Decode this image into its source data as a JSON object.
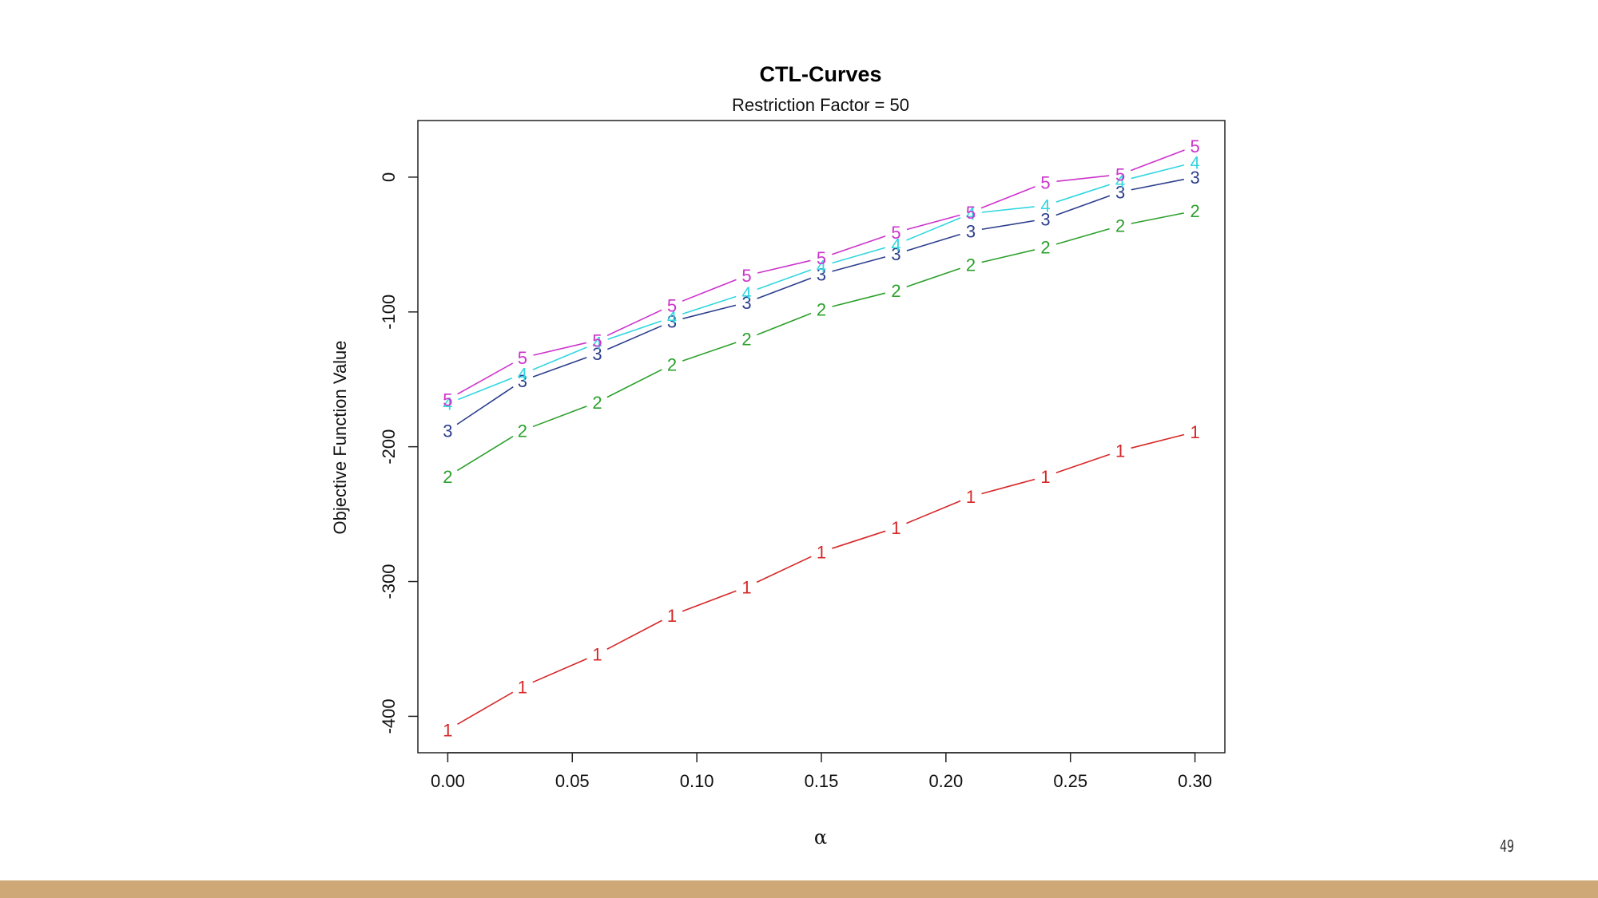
{
  "page": {
    "number": "49",
    "footer_color": "#cfa877"
  },
  "chart_data": {
    "type": "line",
    "title": "CTL-Curves",
    "subtitle": "Restriction Factor = 50",
    "xlabel": "α",
    "ylabel": "Objective Function Value",
    "xlim": [
      -0.012,
      0.312
    ],
    "ylim": [
      -427,
      42
    ],
    "x_ticks": [
      0.0,
      0.05,
      0.1,
      0.15,
      0.2,
      0.25,
      0.3
    ],
    "x_tick_labels": [
      "0.00",
      "0.05",
      "0.10",
      "0.15",
      "0.20",
      "0.25",
      "0.30"
    ],
    "y_ticks": [
      -400,
      -300,
      -200,
      -100,
      0
    ],
    "y_tick_labels": [
      "-400",
      "-300",
      "-200",
      "-100",
      "0"
    ],
    "x": [
      0.0,
      0.03,
      0.06,
      0.09,
      0.12,
      0.15,
      0.18,
      0.21,
      0.24,
      0.27,
      0.3
    ],
    "grid": false,
    "legend": "none",
    "series": [
      {
        "name": "1",
        "color": "#d62728",
        "values": [
          -410,
          -378,
          -354,
          -325,
          -304,
          -278,
          -260,
          -237,
          -222,
          -203,
          -189
        ]
      },
      {
        "name": "2",
        "color": "#2ca02c",
        "values": [
          -222,
          -188,
          -167,
          -139,
          -120,
          -98,
          -84,
          -65,
          -52,
          -36,
          -25
        ]
      },
      {
        "name": "3",
        "color": "#2c3e8c",
        "values": [
          -188,
          -151,
          -131,
          -107,
          -93,
          -72,
          -57,
          -40,
          -31,
          -11,
          0
        ]
      },
      {
        "name": "4",
        "color": "#33d6e0",
        "values": [
          -168,
          -146,
          -123,
          -104,
          -86,
          -66,
          -50,
          -27,
          -21,
          -3,
          11
        ]
      },
      {
        "name": "5",
        "color": "#cc33cc",
        "values": [
          -165,
          -134,
          -121,
          -95,
          -73,
          -60,
          -41,
          -26,
          -4,
          2,
          23
        ]
      }
    ]
  }
}
